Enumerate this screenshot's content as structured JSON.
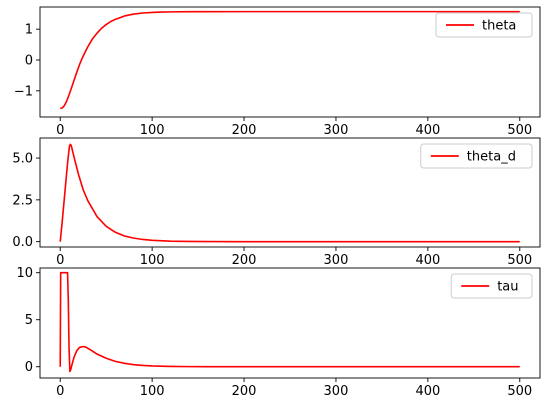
{
  "chart_data": [
    {
      "type": "line",
      "title": "",
      "xlabel": "",
      "ylabel": "",
      "xlim": [
        -22,
        522
      ],
      "ylim": [
        -1.85,
        1.72
      ],
      "xticks": [
        0,
        100,
        200,
        300,
        400,
        500
      ],
      "yticks": [
        -1,
        0,
        1
      ],
      "legend": "upper-right",
      "grid": false,
      "series": [
        {
          "name": "theta",
          "color": "#ff0000",
          "x": [
            0,
            2,
            4,
            6,
            8,
            10,
            12,
            15,
            18,
            21,
            25,
            30,
            35,
            40,
            45,
            50,
            55,
            60,
            70,
            80,
            90,
            100,
            110,
            120,
            140,
            160,
            200,
            300,
            400,
            500
          ],
          "y": [
            -1.57,
            -1.56,
            -1.5,
            -1.4,
            -1.26,
            -1.1,
            -0.93,
            -0.66,
            -0.4,
            -0.15,
            0.13,
            0.43,
            0.68,
            0.87,
            1.03,
            1.15,
            1.25,
            1.32,
            1.43,
            1.49,
            1.525,
            1.545,
            1.556,
            1.562,
            1.567,
            1.569,
            1.57,
            1.57,
            1.57,
            1.57
          ]
        }
      ]
    },
    {
      "type": "line",
      "title": "",
      "xlabel": "",
      "ylabel": "",
      "xlim": [
        -22,
        522
      ],
      "ylim": [
        -0.32,
        6.2
      ],
      "xticks": [
        0,
        100,
        200,
        300,
        400,
        500
      ],
      "yticks": [
        0.0,
        2.5,
        5.0
      ],
      "ytick_labels": [
        "0.0",
        "2.5",
        "5.0"
      ],
      "legend": "upper-right",
      "grid": false,
      "series": [
        {
          "name": "theta_d",
          "color": "#ff0000",
          "x": [
            0,
            2,
            4,
            6,
            8,
            10,
            11,
            12,
            14,
            16,
            20,
            25,
            30,
            40,
            50,
            60,
            70,
            80,
            90,
            100,
            120,
            140,
            160,
            200,
            300,
            400,
            500
          ],
          "y": [
            0,
            1.1,
            2.3,
            3.5,
            4.7,
            5.7,
            5.82,
            5.75,
            5.3,
            4.85,
            4.0,
            3.1,
            2.45,
            1.5,
            0.92,
            0.56,
            0.34,
            0.21,
            0.13,
            0.08,
            0.03,
            0.01,
            0.005,
            0,
            0,
            0,
            0
          ]
        }
      ]
    },
    {
      "type": "line",
      "title": "",
      "xlabel": "",
      "ylabel": "",
      "xlim": [
        -22,
        522
      ],
      "ylim": [
        -1.2,
        10.5
      ],
      "xticks": [
        0,
        100,
        200,
        300,
        400,
        500
      ],
      "yticks": [
        0,
        5,
        10
      ],
      "legend": "upper-right",
      "grid": false,
      "series": [
        {
          "name": "tau",
          "color": "#ff0000",
          "x": [
            0,
            0.5,
            1,
            2,
            4,
            6,
            8,
            8.8,
            9.6,
            10.5,
            11.5,
            13,
            15,
            18,
            21,
            25,
            28,
            32,
            36,
            40,
            50,
            60,
            70,
            80,
            90,
            100,
            120,
            140,
            160,
            200,
            300,
            400,
            500
          ],
          "y": [
            0,
            10,
            10,
            10,
            10,
            10,
            10,
            7.0,
            2.0,
            -0.5,
            -0.3,
            0.3,
            1.0,
            1.7,
            2.05,
            2.15,
            2.08,
            1.85,
            1.6,
            1.35,
            0.9,
            0.57,
            0.36,
            0.22,
            0.14,
            0.08,
            0.03,
            0.01,
            0.005,
            0,
            0,
            0,
            0
          ]
        }
      ]
    }
  ]
}
